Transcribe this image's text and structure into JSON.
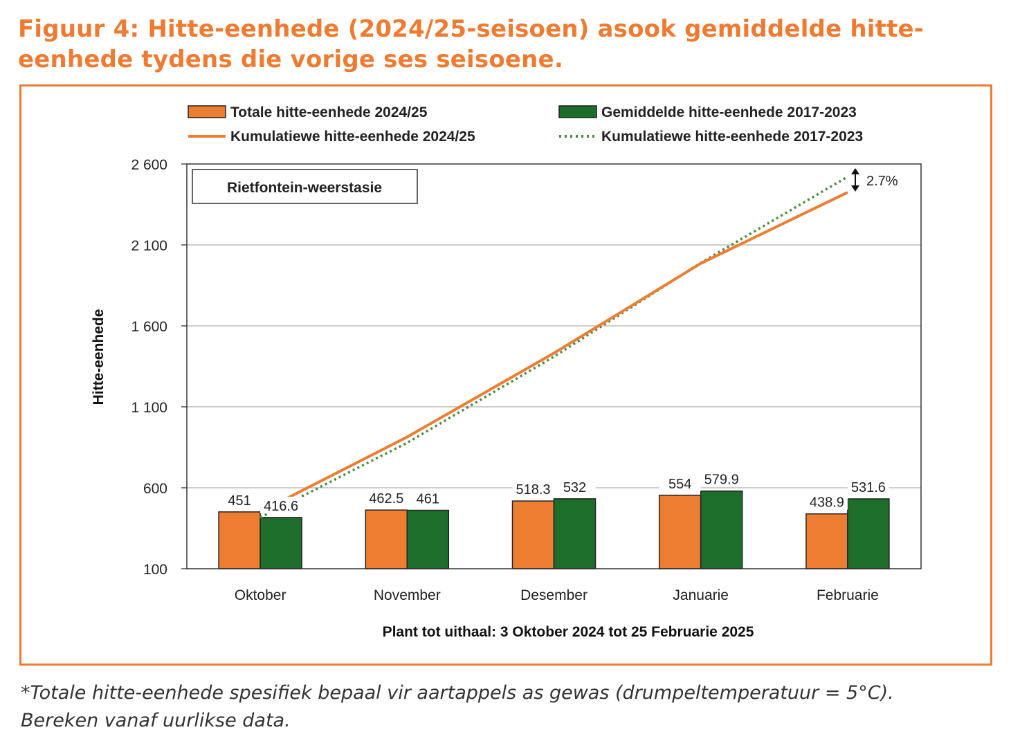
{
  "title": "Figuur 4: Hitte-eenhede (2024/25-seisoen) asook gemiddelde hitte-eenhede tydens die vorige ses seisoene.",
  "footnote_line1": "*Totale hitte-eenhede spesifiek bepaal vir aartappels as gewas (drumpeltemperatuur = 5°C).",
  "footnote_line2": "Bereken vanaf uurlikse data.",
  "colors": {
    "orange": "#ed7d31",
    "green": "#1e6e2b",
    "dotted": "#4a8a3a",
    "accent": "#ef7b32"
  },
  "chart_data": {
    "type": "bar+line",
    "categories": [
      "Oktober",
      "November",
      "Desember",
      "Januarie",
      "Februarie"
    ],
    "series": [
      {
        "name": "Totale hitte-eenhede 2024/25",
        "type": "bar",
        "values": [
          451,
          462.5,
          518.3,
          554,
          438.9
        ],
        "labels": [
          "451",
          "462.5",
          "518.3",
          "554",
          "438.9"
        ]
      },
      {
        "name": "Gemiddelde hitte-eenhede 2017-2023",
        "type": "bar",
        "values": [
          416.6,
          461,
          532,
          579.9,
          531.6
        ],
        "labels": [
          "416.6",
          "461",
          "532",
          "579.9",
          "531.6"
        ]
      },
      {
        "name": "Kumulatiewe hitte-eenhede 2024/25",
        "type": "line",
        "values": [
          451,
          913.5,
          1431.8,
          1985.8,
          2424.7
        ]
      },
      {
        "name": "Kumulatiewe hitte-eenhede 2017-2023",
        "type": "line-dotted",
        "values": [
          416.6,
          877.6,
          1409.6,
          1989.5,
          2521.1
        ]
      }
    ],
    "ylabel": "Hitte-eenhede",
    "xlabel": "Plant tot uithaal: 3 Oktober 2024 tot 25 Februarie 2025",
    "ylim": [
      100,
      2600
    ],
    "yticks": [
      100,
      600,
      1100,
      1600,
      2100,
      2600
    ],
    "ytick_labels": [
      "100",
      "600",
      "1 100",
      "1 600",
      "2 100",
      "2 600"
    ],
    "station_label": "Rietfontein-weerstasie",
    "annotation": "2.7%",
    "grid": true,
    "legend_position": "top"
  }
}
